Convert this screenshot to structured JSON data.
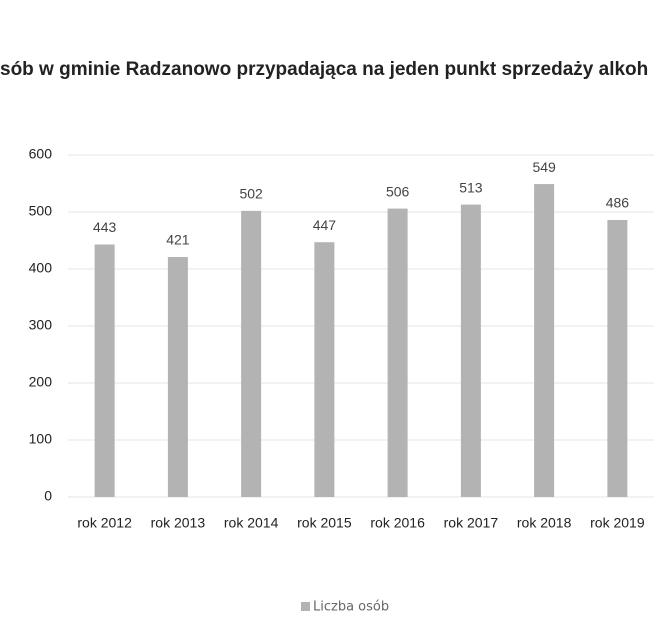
{
  "chart_data": {
    "type": "bar",
    "title": "sób w gminie Radzanowo przypadająca na jeden punkt sprzedaży alkoh",
    "categories": [
      "rok 2012",
      "rok 2013",
      "rok 2014",
      "rok 2015",
      "rok 2016",
      "rok 2017",
      "rok 2018",
      "rok 2019"
    ],
    "series": [
      {
        "name": "Liczba osób",
        "color": "#b3b3b3",
        "values": [
          443,
          421,
          502,
          447,
          506,
          513,
          549,
          486
        ]
      }
    ],
    "ylim": [
      0,
      600
    ],
    "yticks": [
      0,
      100,
      200,
      300,
      400,
      500,
      600
    ],
    "grid": true,
    "legend": "bottom"
  }
}
